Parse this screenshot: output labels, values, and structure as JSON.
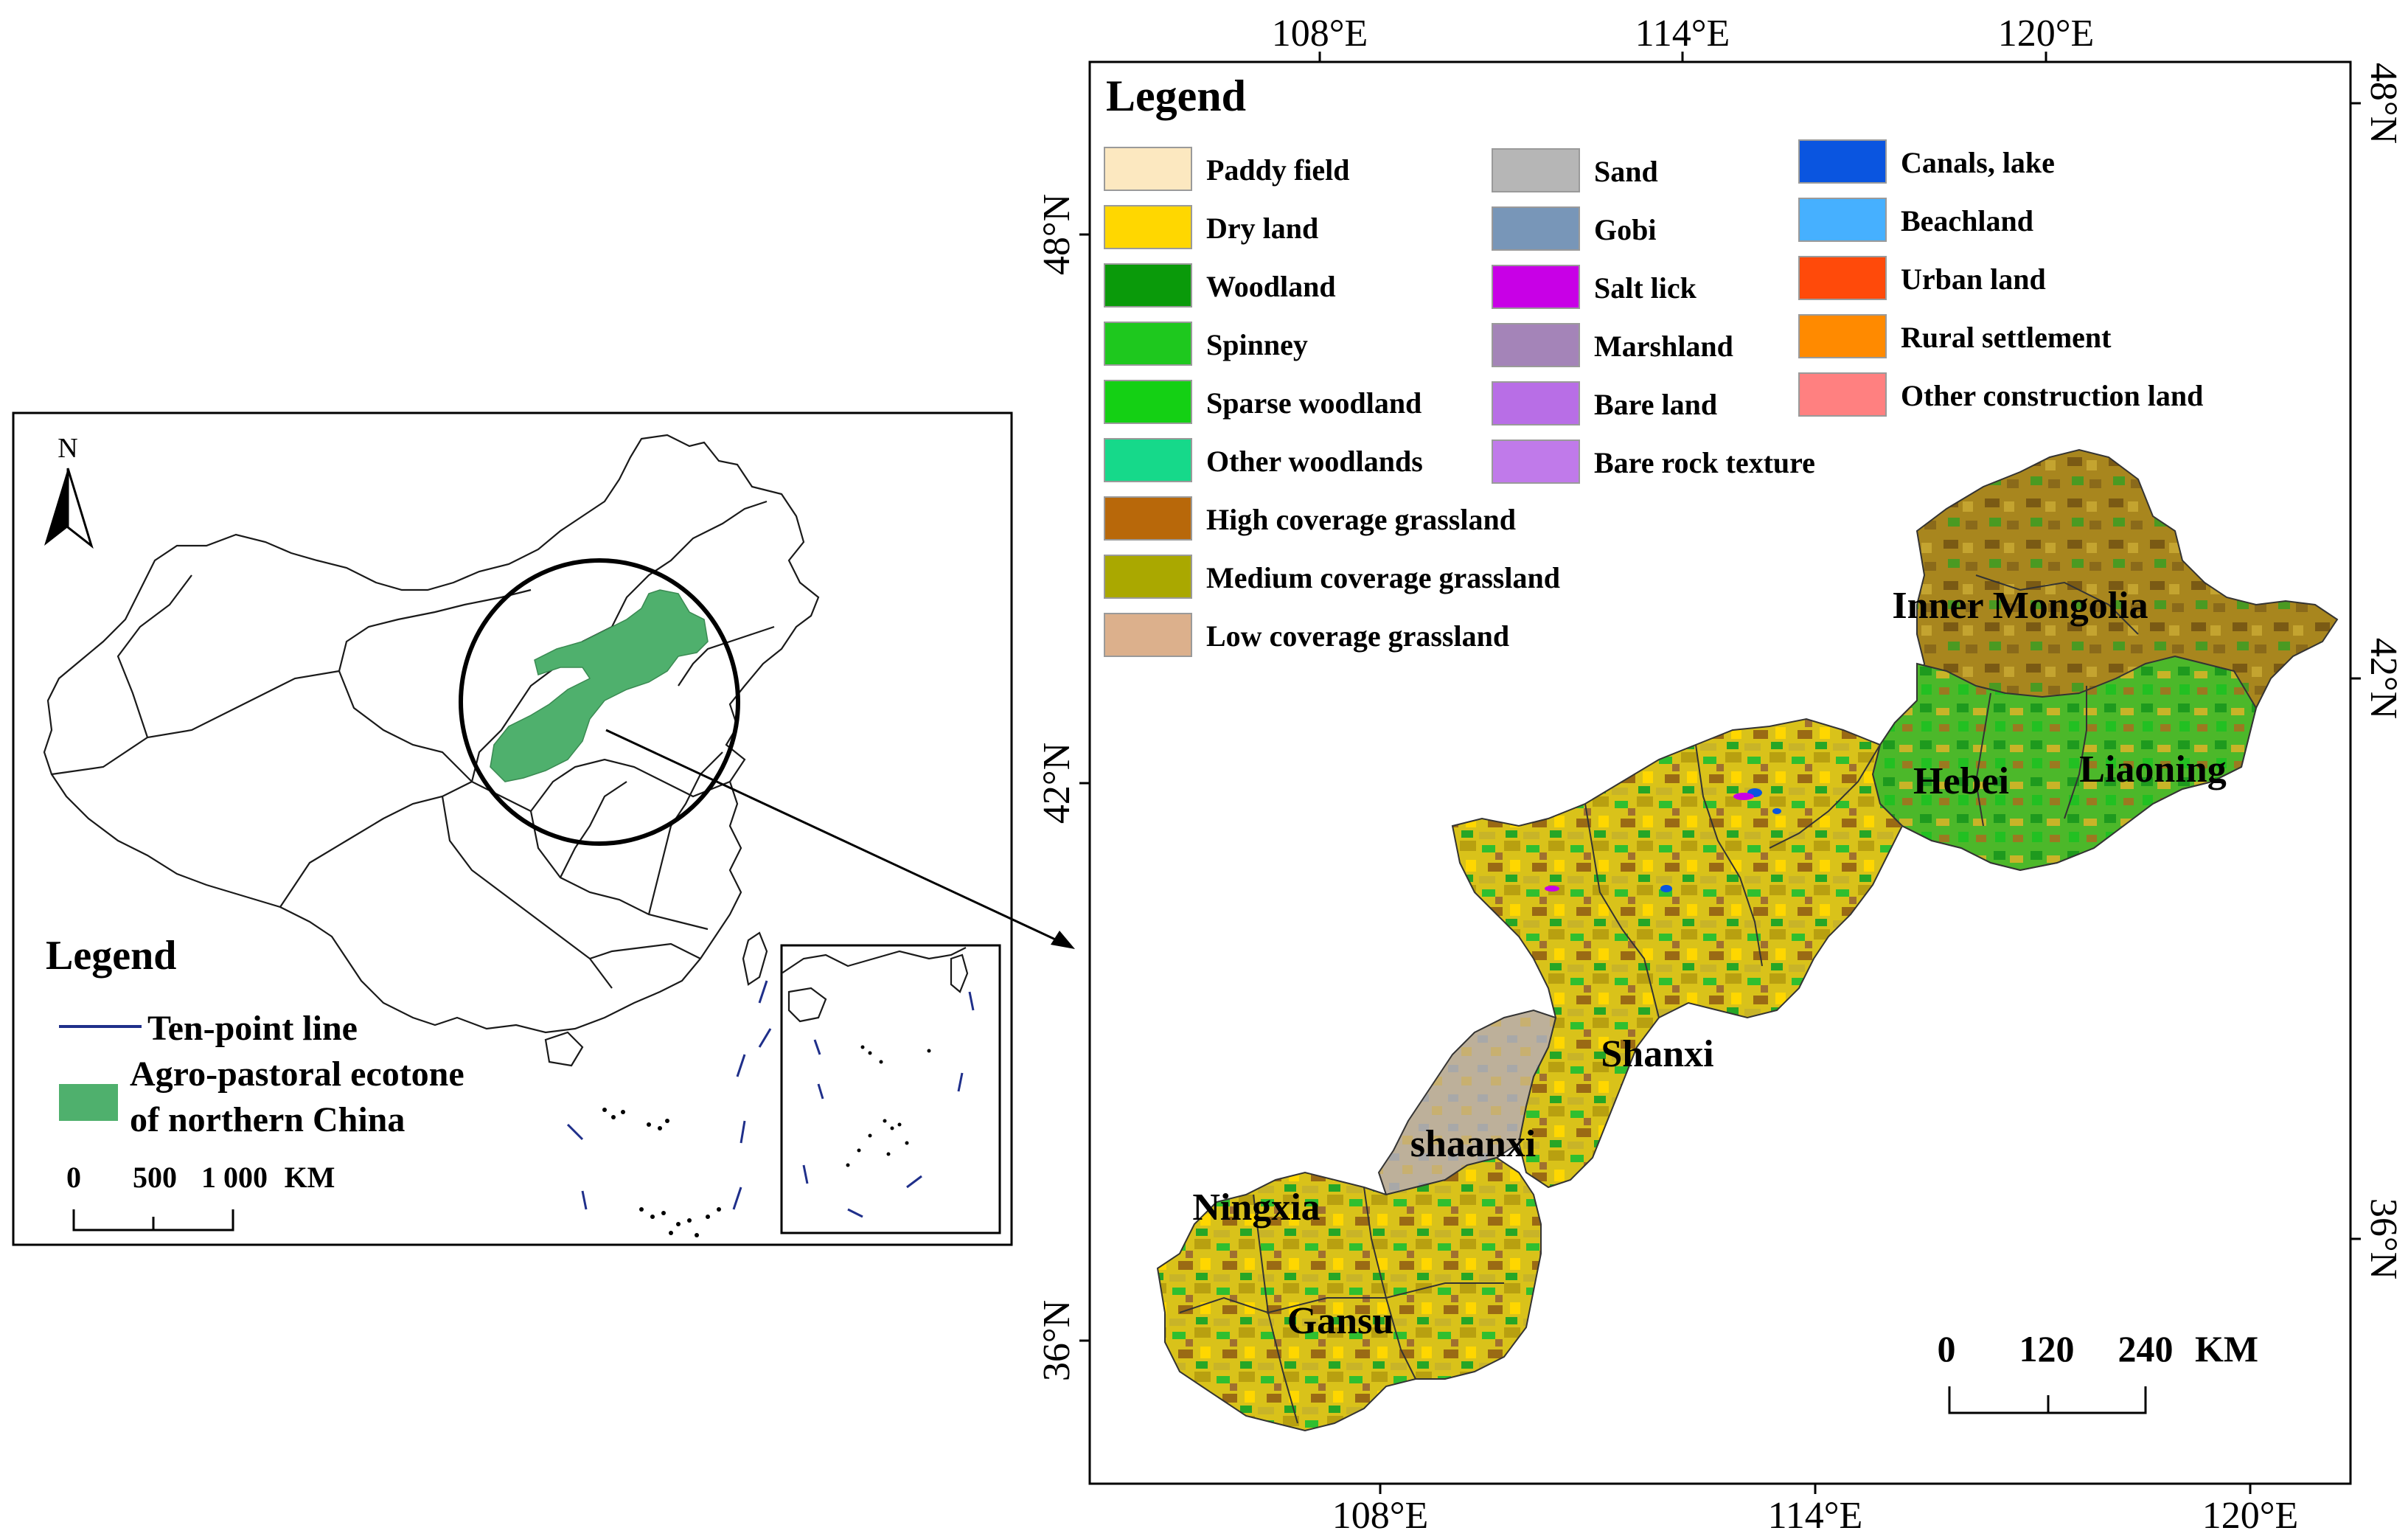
{
  "overview_map": {
    "north_label": "N",
    "legend_title": "Legend",
    "legend_items": [
      {
        "label": "Ten-point line",
        "kind": "line",
        "color": "#1f2f8a"
      },
      {
        "label": "Agro-pastoral ecotone",
        "label2": "of northern China",
        "kind": "patch",
        "color": "#4fb06d"
      }
    ],
    "scale_bar": {
      "labels": [
        "0",
        "500",
        "1 000",
        "KM"
      ]
    }
  },
  "detail_map": {
    "top_ticks": [
      "108°E",
      "114°E",
      "120°E"
    ],
    "bottom_ticks": [
      "108°E",
      "114°E",
      "120°E"
    ],
    "left_ticks": [
      "48°N",
      "42°N",
      "36°N"
    ],
    "right_ticks": [
      "48°N",
      "42°N",
      "36°N"
    ],
    "legend_title": "Legend",
    "legend_items": [
      {
        "label": "Paddy field",
        "color": "#fce8c0"
      },
      {
        "label": "Dry land",
        "color": "#ffd700"
      },
      {
        "label": "Woodland",
        "color": "#0a9a0a"
      },
      {
        "label": "Spinney",
        "color": "#1ec81e"
      },
      {
        "label": "Sparse woodland",
        "color": "#14d014"
      },
      {
        "label": "Other woodlands",
        "color": "#16d98a"
      },
      {
        "label": "High coverage grassland",
        "color": "#b8680a"
      },
      {
        "label": "Medium coverage grassland",
        "color": "#aaa800"
      },
      {
        "label": "Low coverage grassland",
        "color": "#dcb08c"
      },
      {
        "label": "Sand",
        "color": "#b6b6b6"
      },
      {
        "label": "Gobi",
        "color": "#7896b8"
      },
      {
        "label": "Salt lick",
        "color": "#c800e6"
      },
      {
        "label": "Marshland",
        "color": "#a484b8"
      },
      {
        "label": "Bare land",
        "color": "#b86ee6"
      },
      {
        "label": "Bare rock texture",
        "color": "#c07aea"
      },
      {
        "label": "Canals, lake",
        "color": "#0a55e0"
      },
      {
        "label": "Beachland",
        "color": "#46b0ff"
      },
      {
        "label": "Urban land",
        "color": "#ff4a0a"
      },
      {
        "label": "Rural settlement",
        "color": "#ff8a00"
      },
      {
        "label": "Other construction land",
        "color": "#ff8080"
      }
    ],
    "region_labels": [
      "Inner Mongolia",
      "Hebei",
      "Liaoning",
      "Shanxi",
      "shaanxi",
      "Ningxia",
      "Gansu"
    ],
    "scale_bar": {
      "labels": [
        "0",
        "120",
        "240",
        "KM"
      ]
    }
  }
}
